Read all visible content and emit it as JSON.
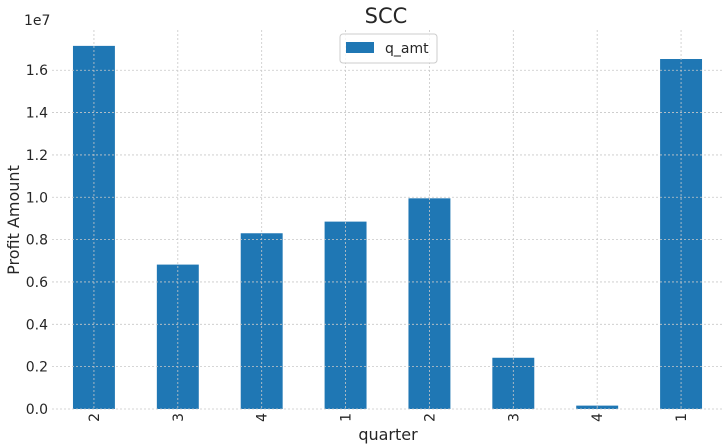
{
  "chart_data": {
    "type": "bar",
    "title": "SCC",
    "xlabel": "quarter",
    "ylabel": "Profit Amount",
    "y_offset_label": "1e7",
    "categories": [
      "2",
      "3",
      "4",
      "1",
      "2",
      "3",
      "4",
      "1"
    ],
    "series": [
      {
        "name": "q_amt",
        "values": [
          17150000,
          6820000,
          8300000,
          8850000,
          9950000,
          2420000,
          160000,
          16530000
        ],
        "color": "#1f77b4"
      }
    ],
    "ylim": [
      0,
      17900000
    ],
    "y_ticks": [
      0,
      2000000,
      4000000,
      6000000,
      8000000,
      10000000,
      12000000,
      14000000,
      16000000
    ],
    "y_tick_labels": [
      "0.0",
      "0.2",
      "0.4",
      "0.6",
      "0.8",
      "1.0",
      "1.2",
      "1.4",
      "1.6"
    ],
    "grid": true,
    "legend_position": "top-center"
  }
}
